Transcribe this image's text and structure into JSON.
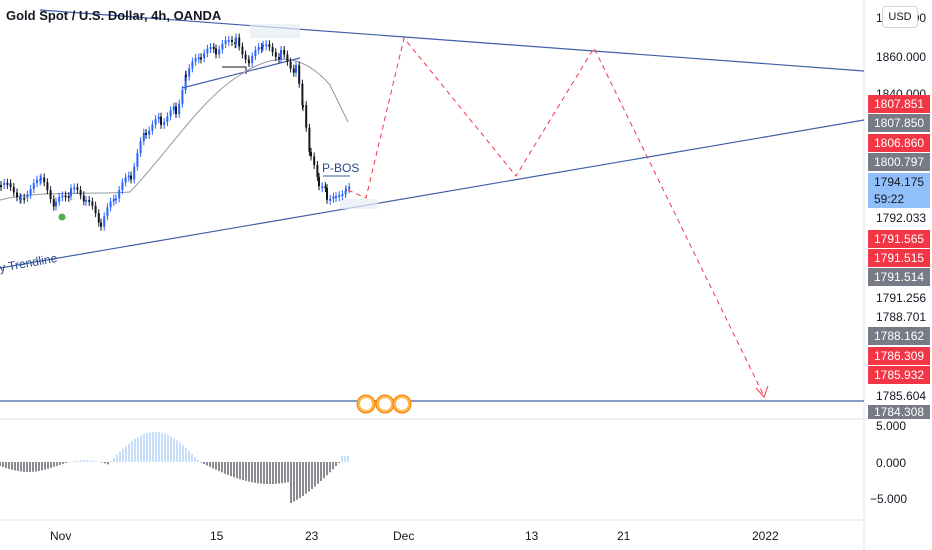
{
  "header": {
    "title": "Gold Spot / U.S. Dollar, 4h, OANDA",
    "currency_button": "USD"
  },
  "annotations": {
    "pattern_label": "P-BOS",
    "trendline_label": "y Trendline"
  },
  "price_axis": {
    "top_tick": "1880.000",
    "plain_ticks": [
      "1860.000",
      "1840.000",
      "1792.033",
      "1791.256",
      "1788.701",
      "1785.604"
    ],
    "labels": [
      {
        "text": "1807.851",
        "color": "#f23645"
      },
      {
        "text": "1807.850",
        "color": "#787b86"
      },
      {
        "text": "1806.860",
        "color": "#f23645"
      },
      {
        "text": "1800.797",
        "color": "#787b86"
      },
      {
        "text": "1794.175",
        "color": "#90bff9",
        "countdown": "59:22"
      },
      {
        "text": "1791.565",
        "color": "#f23645"
      },
      {
        "text": "1791.515",
        "color": "#f23645"
      },
      {
        "text": "1791.514",
        "color": "#787b86"
      },
      {
        "text": "1788.162",
        "color": "#787b86"
      },
      {
        "text": "1786.309",
        "color": "#f23645"
      },
      {
        "text": "1785.932",
        "color": "#f23645"
      },
      {
        "text": "1784.308",
        "color": "#787b86"
      }
    ]
  },
  "oscillator_axis": {
    "ticks": [
      "5.000",
      "0.000",
      "−5.000"
    ]
  },
  "time_axis": {
    "ticks": [
      "Nov",
      "15",
      "23",
      "Dec",
      "13",
      "21",
      "2022"
    ]
  },
  "colors": {
    "trendline": "#3f5fa8",
    "projection": "#f23645",
    "candle_up": "#2962ff",
    "candle_down": "#131722",
    "osc_up": "#90bff9",
    "osc_down": "#131722",
    "ma": "#9598a1"
  }
}
